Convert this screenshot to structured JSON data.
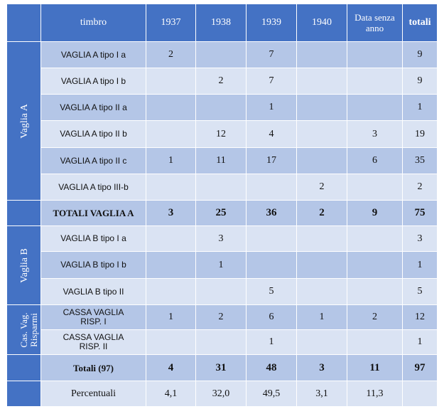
{
  "header": {
    "timbro": "timbro",
    "years": [
      "1937",
      "1938",
      "1939",
      "1940"
    ],
    "no_date": "Data senza anno",
    "totali": "totali"
  },
  "groups": {
    "vaglia_a": "Vaglia A",
    "vaglia_b": "Vaglia B",
    "cassa": "Cas. Vag. Risparmi"
  },
  "rows": [
    {
      "label": "VAGLIA A tipo I a",
      "c": [
        "2",
        "",
        "7",
        "",
        ""
      ],
      "total": "9"
    },
    {
      "label": "VAGLIA A tipo I b",
      "c": [
        "",
        "2",
        "7",
        "",
        ""
      ],
      "total": "9"
    },
    {
      "label": "VAGLIA A tipo II a",
      "c": [
        "",
        "",
        "1",
        "",
        ""
      ],
      "total": "1"
    },
    {
      "label": "VAGLIA A tipo II b",
      "c": [
        "",
        "12",
        "4",
        "",
        "3"
      ],
      "total": "19"
    },
    {
      "label": "VAGLIA A tipo II c",
      "c": [
        "1",
        "11",
        "17",
        "",
        "6"
      ],
      "total": "35"
    },
    {
      "label": "VAGLIA A tipo III-b",
      "c": [
        "",
        "",
        "",
        "2",
        ""
      ],
      "total": "2"
    },
    {
      "label": "TOTALI VAGLIA A",
      "c": [
        "3",
        "25",
        "36",
        "2",
        "9"
      ],
      "total": "75"
    },
    {
      "label": "VAGLIA B tipo I a",
      "c": [
        "",
        "3",
        "",
        "",
        ""
      ],
      "total": "3"
    },
    {
      "label": "VAGLIA B tipo I b",
      "c": [
        "",
        "1",
        "",
        "",
        ""
      ],
      "total": "1"
    },
    {
      "label": "VAGLIA B tipo II",
      "c": [
        "",
        "",
        "5",
        "",
        ""
      ],
      "total": "5"
    },
    {
      "label": "CASSA VAGLIA RISP. I",
      "c": [
        "1",
        "2",
        "6",
        "1",
        "2"
      ],
      "total": "12"
    },
    {
      "label": "CASSA VAGLIA RISP. II",
      "c": [
        "",
        "",
        "1",
        "",
        ""
      ],
      "total": "1"
    },
    {
      "label": "Totali (97)",
      "c": [
        "4",
        "31",
        "48",
        "3",
        "11"
      ],
      "total": "97"
    },
    {
      "label": "Percentuali",
      "c": [
        "4,1",
        "32,0",
        "49,5",
        "3,1",
        "11,3"
      ],
      "total": ""
    }
  ]
}
